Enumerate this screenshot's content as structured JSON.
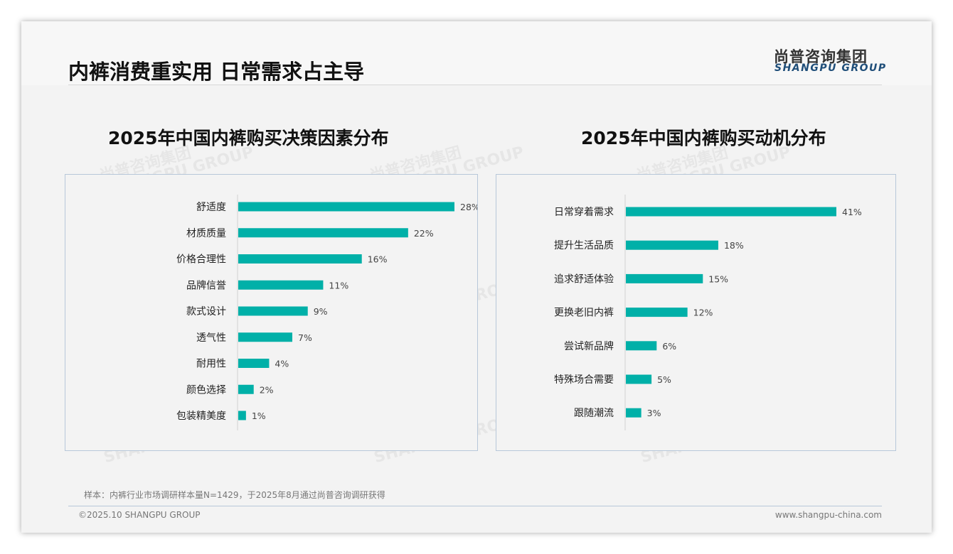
{
  "title": "内裤消费重实用 日常需求占主导",
  "logo": {
    "cn": "尚普咨询集团",
    "en": "SHANGPU GROUP"
  },
  "watermark": "尚普咨询集团 SHANGPU GROUP",
  "footer": {
    "note": "样本：内裤行业市场调研样本量N=1429，于2025年8月通过尚普咨询调研获得",
    "copyright": "©2025.10 SHANGPU GROUP",
    "url": "www.shangpu-china.com"
  },
  "colors": {
    "bar": "#00b0a8"
  },
  "chart_data": [
    {
      "type": "bar",
      "orientation": "horizontal",
      "title": "2025年中国内裤购买决策因素分布",
      "categories": [
        "舒适度",
        "材质质量",
        "价格合理性",
        "品牌信誉",
        "款式设计",
        "透气性",
        "耐用性",
        "颜色选择",
        "包装精美度"
      ],
      "values": [
        28,
        22,
        16,
        11,
        9,
        7,
        4,
        2,
        1
      ],
      "labels": [
        "28%",
        "22%",
        "16%",
        "11%",
        "9%",
        "7%",
        "4%",
        "2%",
        "1%"
      ],
      "unit": "%",
      "xlim": [
        0,
        28
      ]
    },
    {
      "type": "bar",
      "orientation": "horizontal",
      "title": "2025年中国内裤购买动机分布",
      "categories": [
        "日常穿着需求",
        "提升生活品质",
        "追求舒适体验",
        "更换老旧内裤",
        "尝试新品牌",
        "特殊场合需要",
        "跟随潮流"
      ],
      "values": [
        41,
        18,
        15,
        12,
        6,
        5,
        3
      ],
      "labels": [
        "41%",
        "18%",
        "15%",
        "12%",
        "6%",
        "5%",
        "3%"
      ],
      "unit": "%",
      "xlim": [
        0,
        41
      ]
    }
  ]
}
